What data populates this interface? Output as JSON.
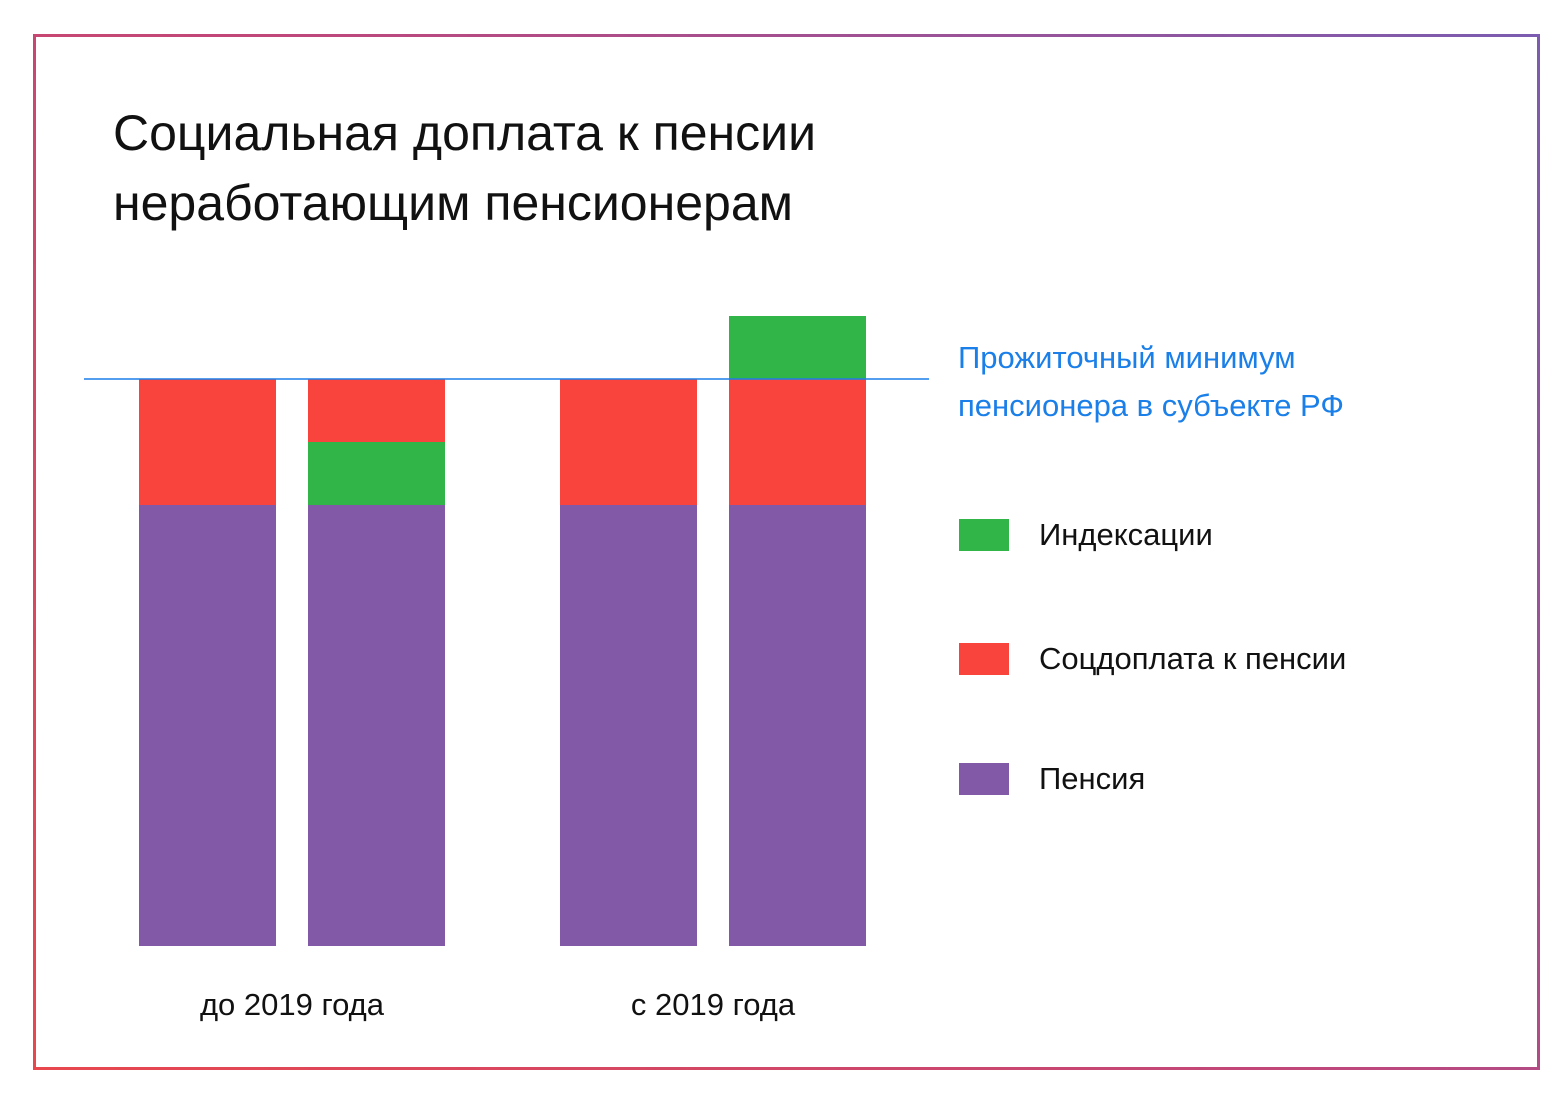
{
  "chart_data": {
    "type": "bar",
    "stacked": true,
    "title": "Социальная доплата к пенсии\nнеработающим пенсионерам",
    "groups": [
      {
        "label": "до 2019 года",
        "bars": 2
      },
      {
        "label": "с 2019 года",
        "bars": 2
      }
    ],
    "series": [
      {
        "name": "Пенсия",
        "color": "#8159a6",
        "values": [
          70,
          70,
          70,
          70
        ]
      },
      {
        "name": "Соцдоплата к пенсии",
        "color": "#f8443c",
        "values": [
          20,
          10,
          20,
          20
        ]
      },
      {
        "name": "Индексации",
        "color": "#32b548",
        "values": [
          0,
          10,
          0,
          10
        ]
      }
    ],
    "stack_order": [
      {
        "series": "Пенсия",
        "values": [
          70,
          70,
          70,
          70
        ]
      },
      {
        "series": "Индексации",
        "values": [
          0,
          10,
          0,
          0
        ]
      },
      {
        "series": "Соцдоплата к пенсии",
        "values": [
          20,
          10,
          20,
          20
        ]
      },
      {
        "series": "Индексации",
        "values": [
          0,
          0,
          0,
          10
        ]
      }
    ],
    "threshold": {
      "value": 90,
      "label": "Прожиточный минимум\nпенсионера в субъекте РФ",
      "color": "#1a7fe8"
    },
    "legend": [
      {
        "name": "Индексации",
        "color": "#32b548"
      },
      {
        "name": "Соцдоплата к пенсии",
        "color": "#f8443c"
      },
      {
        "name": "Пенсия",
        "color": "#8159a6"
      }
    ],
    "legend_position": "right",
    "ylim": [
      0,
      100
    ],
    "grid": false
  }
}
